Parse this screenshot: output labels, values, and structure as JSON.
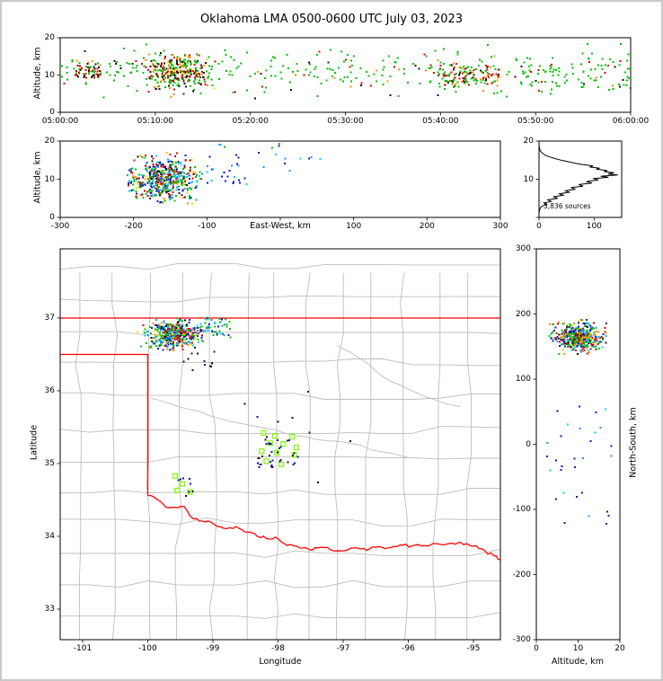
{
  "title": "Oklahoma LMA 0500-0600 UTC July 03, 2023",
  "annotation": {
    "sources_label": "5,836 sources"
  },
  "axes": {
    "time_height": {
      "ylabel": "Altitude, km",
      "yticks": [
        {
          "v": 0,
          "label": "0"
        },
        {
          "v": 10,
          "label": "10"
        },
        {
          "v": 20,
          "label": "20"
        }
      ],
      "xticks": [
        {
          "v": 0,
          "label": "05:00:00"
        },
        {
          "v": 600,
          "label": "05:10:00"
        },
        {
          "v": 1200,
          "label": "05:20:00"
        },
        {
          "v": 1800,
          "label": "05:30:00"
        },
        {
          "v": 2400,
          "label": "05:40:00"
        },
        {
          "v": 3000,
          "label": "05:50:00"
        },
        {
          "v": 3600,
          "label": "06:00:00"
        }
      ]
    },
    "ew_height": {
      "ylabel": "Altitude, km",
      "xlabel": "East-West, km",
      "yticks": [
        {
          "v": 0,
          "label": "0"
        },
        {
          "v": 10,
          "label": "10"
        },
        {
          "v": 20,
          "label": "20"
        }
      ],
      "xticks": [
        {
          "v": -300,
          "label": "-300"
        },
        {
          "v": -200,
          "label": "-200"
        },
        {
          "v": -100,
          "label": "-100"
        },
        {
          "v": 0,
          "label": ""
        },
        {
          "v": 100,
          "label": "100"
        },
        {
          "v": 200,
          "label": "200"
        },
        {
          "v": 300,
          "label": "300"
        }
      ]
    },
    "src_histogram": {
      "yticks": [
        {
          "v": 0,
          "label": ""
        },
        {
          "v": 10,
          "label": "10"
        },
        {
          "v": 20,
          "label": "20"
        }
      ],
      "xticks": [
        {
          "v": 0,
          "label": "0"
        },
        {
          "v": 100,
          "label": "100"
        }
      ]
    },
    "map": {
      "xlabel": "Longitude",
      "ylabel": "Latitude",
      "xticks": [
        {
          "v": -101,
          "label": "-101"
        },
        {
          "v": -100,
          "label": "-100"
        },
        {
          "v": -99,
          "label": "-99"
        },
        {
          "v": -98,
          "label": "-98"
        },
        {
          "v": -97,
          "label": "-97"
        },
        {
          "v": -96,
          "label": "-96"
        },
        {
          "v": -95,
          "label": "-95"
        }
      ],
      "yticks": [
        {
          "v": 33,
          "label": "33"
        },
        {
          "v": 34,
          "label": "34"
        },
        {
          "v": 35,
          "label": "35"
        },
        {
          "v": 36,
          "label": "36"
        },
        {
          "v": 37,
          "label": "37"
        }
      ]
    },
    "ns_height": {
      "xlabel": "Altitude, km",
      "ylabel": "North-South, km",
      "xticks": [
        {
          "v": 0,
          "label": "0"
        },
        {
          "v": 10,
          "label": "10"
        },
        {
          "v": 20,
          "label": "20"
        }
      ],
      "yticks": [
        {
          "v": -300,
          "label": "-300"
        },
        {
          "v": -200,
          "label": "-200"
        },
        {
          "v": -100,
          "label": "-100"
        },
        {
          "v": 0,
          "label": "0"
        },
        {
          "v": 100,
          "label": "100"
        },
        {
          "v": 200,
          "label": "200"
        },
        {
          "v": 300,
          "label": "300"
        }
      ]
    }
  },
  "chart_data": {
    "type": "scatter",
    "description": "Lightning Mapping Array source plot: time-height panel (0500-0600 UTC), east-west vs altitude panel, source-count altitude histogram, plan-view map (longitude/latitude) with county and state borders, and north-south vs altitude panel.",
    "total_sources_label": "5,836 sources",
    "time_range_utc": [
      "05:00:00",
      "06:00:00"
    ],
    "altitude_range_km": [
      0,
      20
    ],
    "ew_range_km": [
      -300,
      300
    ],
    "ns_range_km": [
      -300,
      300
    ],
    "lon_range": [
      -101.345,
      -94.586
    ],
    "lat_range": [
      32.58,
      37.95
    ],
    "histogram_xmax": 150,
    "histogram_profile": [
      [
        0,
        0
      ],
      [
        1,
        0
      ],
      [
        2,
        1
      ],
      [
        2.6,
        3
      ],
      [
        3,
        6
      ],
      [
        3.4,
        14
      ],
      [
        3.8,
        9
      ],
      [
        4.2,
        22
      ],
      [
        4.6,
        16
      ],
      [
        5,
        34
      ],
      [
        5.4,
        26
      ],
      [
        5.8,
        44
      ],
      [
        6.2,
        37
      ],
      [
        6.6,
        55
      ],
      [
        7,
        48
      ],
      [
        7.4,
        66
      ],
      [
        7.8,
        58
      ],
      [
        8.2,
        80
      ],
      [
        8.6,
        72
      ],
      [
        9,
        96
      ],
      [
        9.4,
        86
      ],
      [
        9.8,
        108
      ],
      [
        10.2,
        98
      ],
      [
        10.5,
        126
      ],
      [
        10.8,
        112
      ],
      [
        11.1,
        143
      ],
      [
        11.4,
        125
      ],
      [
        11.7,
        136
      ],
      [
        12,
        118
      ],
      [
        12.3,
        124
      ],
      [
        12.6,
        104
      ],
      [
        12.9,
        110
      ],
      [
        13.2,
        92
      ],
      [
        13.5,
        98
      ],
      [
        13.8,
        80
      ],
      [
        14.2,
        66
      ],
      [
        14.6,
        52
      ],
      [
        15,
        40
      ],
      [
        15.4,
        30
      ],
      [
        15.8,
        20
      ],
      [
        16.2,
        13
      ],
      [
        16.6,
        8
      ],
      [
        17,
        5
      ],
      [
        17.5,
        2
      ],
      [
        18,
        1
      ],
      [
        19,
        0
      ],
      [
        20,
        0
      ]
    ],
    "palettes": {
      "storm": [
        [
          "#1414b8",
          15
        ],
        [
          "#1e90ff",
          13
        ],
        [
          "#00cfff",
          8
        ],
        [
          "#00c000",
          22
        ],
        [
          "#ffd700",
          5
        ],
        [
          "#ff8c00",
          11
        ],
        [
          "#dd0000",
          15
        ],
        [
          "#8b0000",
          5
        ],
        [
          "#111111",
          6
        ]
      ],
      "green_sparse": [
        [
          "#00c000",
          84
        ],
        [
          "#111111",
          6
        ],
        [
          "#dd0000",
          6
        ],
        [
          "#ff8c00",
          4
        ]
      ],
      "storm_time": [
        [
          "#00c000",
          34
        ],
        [
          "#dd0000",
          20
        ],
        [
          "#8b0000",
          10
        ],
        [
          "#111111",
          16
        ],
        [
          "#ff8c00",
          14
        ],
        [
          "#ffd700",
          6
        ]
      ],
      "blue_sparse": [
        [
          "#1414b8",
          50
        ],
        [
          "#1e90ff",
          28
        ],
        [
          "#00cfff",
          22
        ]
      ],
      "navy": [
        [
          "#101090",
          70
        ],
        [
          "#111111",
          30
        ]
      ],
      "green_blue": [
        [
          "#00c000",
          40
        ],
        [
          "#1e90ff",
          25
        ],
        [
          "#1414b8",
          20
        ],
        [
          "#00cfff",
          15
        ]
      ],
      "red_start": [
        [
          "#dd0000",
          35
        ],
        [
          "#8b0000",
          15
        ],
        [
          "#00c000",
          30
        ],
        [
          "#111111",
          20
        ]
      ],
      "green_red": [
        [
          "#00c000",
          45
        ],
        [
          "#dd0000",
          22
        ],
        [
          "#8b0000",
          8
        ],
        [
          "#111111",
          10
        ],
        [
          "#ff8c00",
          15
        ]
      ],
      "green_late": [
        [
          "#00c000",
          80
        ],
        [
          "#dd0000",
          10
        ],
        [
          "#111111",
          10
        ]
      ]
    },
    "clusters": [
      {
        "panel": "time_height",
        "n": 320,
        "x": {
          "d": "u",
          "a": 0,
          "b": 3600
        },
        "y": {
          "d": "g",
          "m": 11,
          "s": 3,
          "a": 3,
          "b": 19
        },
        "colors": "green_sparse"
      },
      {
        "panel": "time_height",
        "n": 280,
        "x": {
          "d": "g",
          "m": 720,
          "s": 100,
          "a": 470,
          "b": 980
        },
        "y": {
          "d": "g",
          "m": 11,
          "s": 2.4,
          "a": 4,
          "b": 17
        },
        "colors": "storm_time"
      },
      {
        "panel": "time_height",
        "n": 50,
        "x": {
          "d": "u",
          "a": 90,
          "b": 260
        },
        "y": {
          "d": "g",
          "m": 11,
          "s": 1.2,
          "a": 8,
          "b": 14
        },
        "colors": "red_start"
      },
      {
        "panel": "time_height",
        "n": 130,
        "x": {
          "d": "u",
          "a": 2380,
          "b": 2780
        },
        "y": {
          "d": "g",
          "m": 10,
          "s": 2.2,
          "a": 5,
          "b": 15
        },
        "colors": "green_red"
      },
      {
        "panel": "time_height",
        "n": 60,
        "x": {
          "d": "u",
          "a": 2900,
          "b": 3600
        },
        "y": {
          "d": "g",
          "m": 10,
          "s": 3,
          "a": 4,
          "b": 17
        },
        "colors": "green_late"
      },
      {
        "panel": "ew_height",
        "n": 520,
        "x": {
          "d": "g",
          "m": -160,
          "s": 24,
          "a": -212,
          "b": -105
        },
        "y": {
          "d": "g",
          "m": 10,
          "s": 2.8,
          "a": 3.5,
          "b": 17
        },
        "colors": "storm"
      },
      {
        "panel": "ew_height",
        "n": 26,
        "x": {
          "d": "u",
          "a": -115,
          "b": -45
        },
        "y": {
          "d": "u",
          "a": 8,
          "b": 16.5
        },
        "colors": "blue_sparse"
      },
      {
        "panel": "ew_height",
        "n": 10,
        "x": {
          "d": "u",
          "a": -40,
          "b": 60
        },
        "y": {
          "d": "u",
          "a": 12,
          "b": 17
        },
        "colors": "blue_sparse"
      },
      {
        "panel": "ew_height",
        "n": 6,
        "x": {
          "d": "u",
          "a": -100,
          "b": 30
        },
        "y": {
          "d": "u",
          "a": 18.2,
          "b": 19.5
        },
        "colors": "green_blue"
      },
      {
        "panel": "map",
        "n": 470,
        "x": {
          "d": "g",
          "m": -99.6,
          "s": 0.2,
          "a": -100.2,
          "b": -99.1
        },
        "y": {
          "d": "g",
          "m": 36.78,
          "s": 0.1,
          "a": 36.54,
          "b": 37.0
        },
        "colors": "storm"
      },
      {
        "panel": "map",
        "n": 45,
        "x": {
          "d": "u",
          "a": -99.2,
          "b": -98.72
        },
        "y": {
          "d": "u",
          "a": 36.72,
          "b": 37.0
        },
        "colors": "green_blue"
      },
      {
        "panel": "map",
        "n": 12,
        "x": {
          "d": "u",
          "a": -99.45,
          "b": -98.95
        },
        "y": {
          "d": "u",
          "a": 36.25,
          "b": 36.55
        },
        "colors": "navy"
      },
      {
        "panel": "map",
        "n": 34,
        "x": {
          "d": "u",
          "a": -98.32,
          "b": -97.68
        },
        "y": {
          "d": "u",
          "a": 34.95,
          "b": 35.38
        },
        "colors": "navy"
      },
      {
        "panel": "map",
        "n": 8,
        "x": {
          "d": "u",
          "a": -99.7,
          "b": -99.3
        },
        "y": {
          "d": "u",
          "a": 34.55,
          "b": 34.9
        },
        "colors": "navy"
      },
      {
        "panel": "map",
        "n": 8,
        "x": {
          "d": "u",
          "a": -98.6,
          "b": -96.2
        },
        "y": {
          "d": "u",
          "a": 34.4,
          "b": 36.2
        },
        "colors": "navy"
      },
      {
        "panel": "ns_height",
        "n": 470,
        "x": {
          "d": "g",
          "m": 10,
          "s": 2.8,
          "a": 3,
          "b": 17
        },
        "y": {
          "d": "g",
          "m": 164,
          "s": 11,
          "a": 138,
          "b": 192
        },
        "colors": "storm"
      },
      {
        "panel": "ns_height",
        "n": 30,
        "x": {
          "d": "u",
          "a": 2,
          "b": 18
        },
        "y": {
          "d": "u",
          "a": -125,
          "b": 60
        },
        "colors": "blue_sparse"
      }
    ],
    "squares_color": "#7CFC00",
    "squares": [
      [
        -98.22,
        35.42
      ],
      [
        -98.05,
        35.38
      ],
      [
        -97.78,
        35.37
      ],
      [
        -98.12,
        35.28
      ],
      [
        -97.92,
        35.27
      ],
      [
        -98.25,
        35.17
      ],
      [
        -98.02,
        35.15
      ],
      [
        -97.75,
        35.12
      ],
      [
        -98.18,
        35.03
      ],
      [
        -97.95,
        34.99
      ],
      [
        -97.72,
        35.22
      ],
      [
        -99.58,
        34.83
      ],
      [
        -99.47,
        34.72
      ],
      [
        -99.35,
        34.61
      ],
      [
        -99.55,
        34.63
      ]
    ],
    "map_borders": {
      "state_color": "#ff0000",
      "county_color": "#bdbdbd",
      "paths": [
        {
          "wiggle": false,
          "pts": [
            [
              -101.35,
              37.0
            ],
            [
              -94.59,
              37.0
            ]
          ]
        },
        {
          "wiggle": false,
          "pts": [
            [
              -101.35,
              36.5
            ],
            [
              -100.0,
              36.5
            ],
            [
              -100.0,
              34.56
            ]
          ]
        },
        {
          "wiggle": true,
          "pts": [
            [
              -100.0,
              34.56
            ],
            [
              -99.86,
              34.51
            ],
            [
              -99.72,
              34.4
            ],
            [
              -99.58,
              34.4
            ],
            [
              -99.44,
              34.41
            ],
            [
              -99.3,
              34.24
            ],
            [
              -99.16,
              34.21
            ],
            [
              -99.02,
              34.19
            ],
            [
              -98.88,
              34.13
            ],
            [
              -98.74,
              34.12
            ],
            [
              -98.6,
              34.11
            ],
            [
              -98.46,
              34.06
            ],
            [
              -98.32,
              34.0
            ],
            [
              -98.18,
              33.97
            ],
            [
              -98.04,
              33.99
            ],
            [
              -97.9,
              33.9
            ],
            [
              -97.76,
              33.87
            ],
            [
              -97.62,
              33.84
            ],
            [
              -97.48,
              33.81
            ],
            [
              -97.34,
              33.85
            ],
            [
              -97.2,
              33.82
            ],
            [
              -97.06,
              33.8
            ],
            [
              -96.92,
              33.82
            ],
            [
              -96.78,
              33.84
            ],
            [
              -96.64,
              33.81
            ],
            [
              -96.5,
              33.85
            ],
            [
              -96.36,
              33.83
            ],
            [
              -96.22,
              33.86
            ],
            [
              -96.08,
              33.88
            ],
            [
              -95.94,
              33.87
            ],
            [
              -95.8,
              33.87
            ],
            [
              -95.66,
              33.88
            ],
            [
              -95.52,
              33.89
            ],
            [
              -95.38,
              33.9
            ],
            [
              -95.24,
              33.91
            ],
            [
              -95.1,
              33.9
            ],
            [
              -94.96,
              33.87
            ],
            [
              -94.82,
              33.8
            ],
            [
              -94.68,
              33.73
            ],
            [
              -94.59,
              33.68
            ]
          ]
        }
      ],
      "gray_paths": [
        {
          "wiggle": true,
          "pts": [
            [
              -99.95,
              35.9
            ],
            [
              -99.4,
              35.75
            ],
            [
              -98.9,
              35.62
            ],
            [
              -98.4,
              35.52
            ],
            [
              -97.9,
              35.42
            ],
            [
              -97.4,
              35.33
            ],
            [
              -96.9,
              35.28
            ],
            [
              -96.4,
              35.16
            ],
            [
              -96.0,
              35.08
            ]
          ]
        },
        {
          "wiggle": true,
          "pts": [
            [
              -97.1,
              36.62
            ],
            [
              -96.7,
              36.42
            ],
            [
              -96.4,
              36.2
            ],
            [
              -96.0,
              36.02
            ],
            [
              -95.6,
              35.88
            ],
            [
              -95.2,
              35.78
            ]
          ]
        }
      ]
    }
  }
}
